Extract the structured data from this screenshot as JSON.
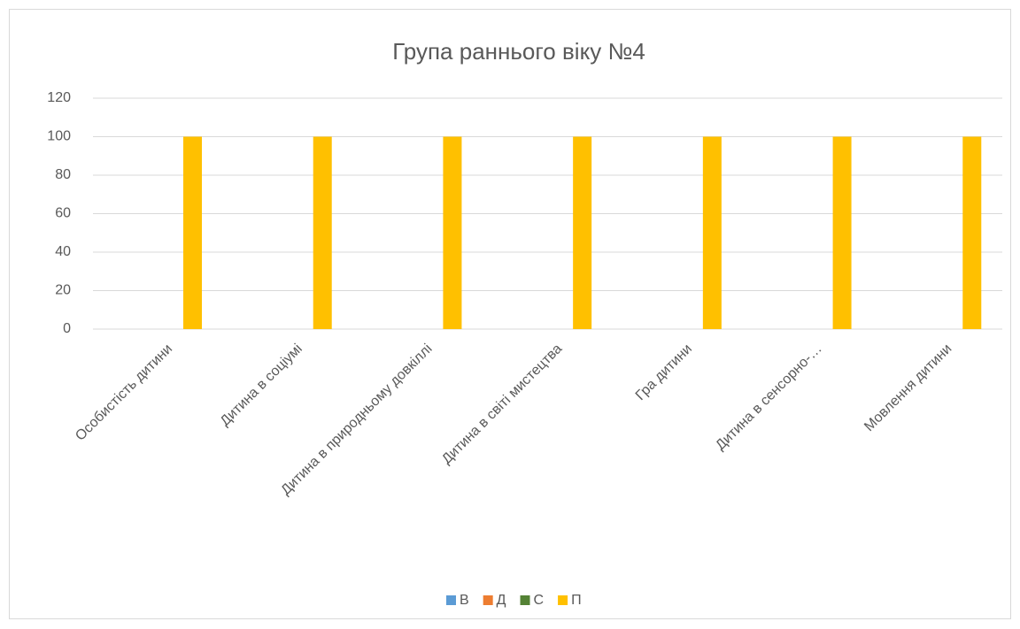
{
  "chart_data": {
    "type": "bar",
    "title": "Група раннього віку №4",
    "categories": [
      "Особистість дитини",
      "Дитина в соціумі",
      "Дитина в природньому довкіллі",
      "Дитина в світі мистецтва",
      "Гра дитини",
      "Дитина в сенсорно-…",
      "Мовлення дитини"
    ],
    "series": [
      {
        "name": "В",
        "color": "#5b9bd5",
        "values": [
          0,
          0,
          0,
          0,
          0,
          0,
          0
        ]
      },
      {
        "name": "Д",
        "color": "#ed7d31",
        "values": [
          0,
          0,
          0,
          0,
          0,
          0,
          0
        ]
      },
      {
        "name": "С",
        "color": "#548235",
        "values": [
          0,
          0,
          0,
          0,
          0,
          0,
          0
        ]
      },
      {
        "name": "П",
        "color": "#ffc000",
        "values": [
          100,
          100,
          100,
          100,
          100,
          100,
          100
        ]
      }
    ],
    "ylim": [
      0,
      120
    ],
    "yticks": [
      0,
      20,
      40,
      60,
      80,
      100,
      120
    ],
    "grid": true,
    "legend": "bottom"
  }
}
